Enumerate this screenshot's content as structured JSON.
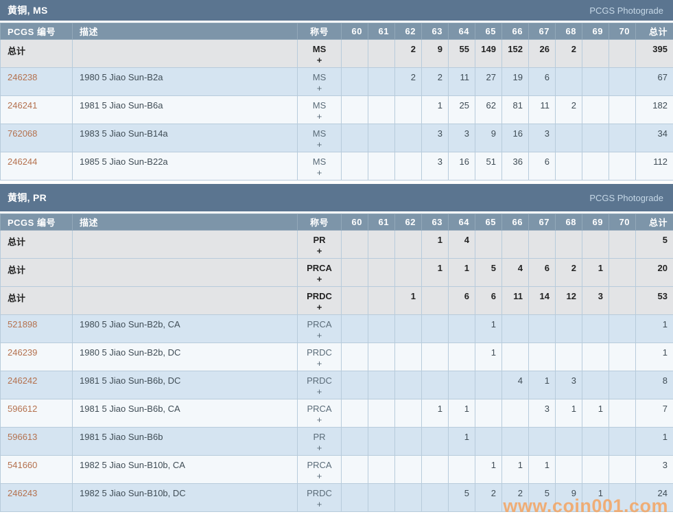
{
  "watermark": {
    "text": "www.coin001.com"
  },
  "colors": {
    "section_bar": "#5b7590",
    "header_row": "#7d95a9",
    "row_blue": "#d5e4f1",
    "row_white": "#f4f8fb",
    "row_total": "#e3e4e6",
    "link": "#b4714e",
    "watermark": "#f5a25c"
  },
  "sections": [
    {
      "title": "黄铜, MS",
      "photograde": "PCGS Photograde",
      "columns": {
        "pcgs": "PCGS 编号",
        "desc": "描述",
        "designation": "称号",
        "grades": [
          "60",
          "61",
          "62",
          "63",
          "64",
          "65",
          "66",
          "67",
          "68",
          "69",
          "70"
        ],
        "total": "总计"
      },
      "rows": [
        {
          "type": "total",
          "label": "总计",
          "desc": "",
          "designation": "MS",
          "plus": "+",
          "grades": [
            "",
            "",
            "2",
            "9",
            "55",
            "149",
            "152",
            "26",
            "2",
            "",
            ""
          ],
          "total": "395"
        },
        {
          "type": "data",
          "pcgs": "246238",
          "desc": "1980 5 Jiao Sun-B2a",
          "designation": "MS",
          "plus": "+",
          "grades": [
            "",
            "",
            "2",
            "2",
            "11",
            "27",
            "19",
            "6",
            "",
            "",
            ""
          ],
          "total": "67"
        },
        {
          "type": "data",
          "pcgs": "246241",
          "desc": "1981 5 Jiao Sun-B6a",
          "designation": "MS",
          "plus": "+",
          "grades": [
            "",
            "",
            "",
            "1",
            "25",
            "62",
            "81",
            "11",
            "2",
            "",
            ""
          ],
          "total": "182"
        },
        {
          "type": "data",
          "pcgs": "762068",
          "desc": "1983 5 Jiao Sun-B14a",
          "designation": "MS",
          "plus": "+",
          "grades": [
            "",
            "",
            "",
            "3",
            "3",
            "9",
            "16",
            "3",
            "",
            "",
            ""
          ],
          "total": "34"
        },
        {
          "type": "data",
          "pcgs": "246244",
          "desc": "1985 5 Jiao Sun-B22a",
          "designation": "MS",
          "plus": "+",
          "grades": [
            "",
            "",
            "",
            "3",
            "16",
            "51",
            "36",
            "6",
            "",
            "",
            ""
          ],
          "total": "112"
        }
      ]
    },
    {
      "title": "黄铜, PR",
      "photograde": "PCGS Photograde",
      "columns": {
        "pcgs": "PCGS 编号",
        "desc": "描述",
        "designation": "称号",
        "grades": [
          "60",
          "61",
          "62",
          "63",
          "64",
          "65",
          "66",
          "67",
          "68",
          "69",
          "70"
        ],
        "total": "总计"
      },
      "rows": [
        {
          "type": "total",
          "label": "总计",
          "desc": "",
          "designation": "PR",
          "plus": "+",
          "grades": [
            "",
            "",
            "",
            "1",
            "4",
            "",
            "",
            "",
            "",
            "",
            ""
          ],
          "total": "5"
        },
        {
          "type": "total",
          "label": "总计",
          "desc": "",
          "designation": "PRCA",
          "plus": "+",
          "grades": [
            "",
            "",
            "",
            "1",
            "1",
            "5",
            "4",
            "6",
            "2",
            "1",
            ""
          ],
          "total": "20"
        },
        {
          "type": "total",
          "label": "总计",
          "desc": "",
          "designation": "PRDC",
          "plus": "+",
          "grades": [
            "",
            "",
            "1",
            "",
            "6",
            "6",
            "11",
            "14",
            "12",
            "3",
            ""
          ],
          "total": "53"
        },
        {
          "type": "data",
          "pcgs": "521898",
          "desc": "1980 5 Jiao Sun-B2b, CA",
          "designation": "PRCA",
          "plus": "+",
          "grades": [
            "",
            "",
            "",
            "",
            "",
            "1",
            "",
            "",
            "",
            "",
            ""
          ],
          "total": "1"
        },
        {
          "type": "data",
          "pcgs": "246239",
          "desc": "1980 5 Jiao Sun-B2b, DC",
          "designation": "PRDC",
          "plus": "+",
          "grades": [
            "",
            "",
            "",
            "",
            "",
            "1",
            "",
            "",
            "",
            "",
            ""
          ],
          "total": "1"
        },
        {
          "type": "data",
          "pcgs": "246242",
          "desc": "1981 5 Jiao Sun-B6b, DC",
          "designation": "PRDC",
          "plus": "+",
          "grades": [
            "",
            "",
            "",
            "",
            "",
            "",
            "4",
            "1",
            "3",
            "",
            ""
          ],
          "total": "8"
        },
        {
          "type": "data",
          "pcgs": "596612",
          "desc": "1981 5 Jiao Sun-B6b, CA",
          "designation": "PRCA",
          "plus": "+",
          "grades": [
            "",
            "",
            "",
            "1",
            "1",
            "",
            "",
            "3",
            "1",
            "1",
            ""
          ],
          "total": "7"
        },
        {
          "type": "data",
          "pcgs": "596613",
          "desc": "1981 5 Jiao Sun-B6b",
          "designation": "PR",
          "plus": "+",
          "grades": [
            "",
            "",
            "",
            "",
            "1",
            "",
            "",
            "",
            "",
            "",
            ""
          ],
          "total": "1"
        },
        {
          "type": "data",
          "pcgs": "541660",
          "desc": "1982 5 Jiao Sun-B10b, CA",
          "designation": "PRCA",
          "plus": "+",
          "grades": [
            "",
            "",
            "",
            "",
            "",
            "1",
            "1",
            "1",
            "",
            "",
            ""
          ],
          "total": "3"
        },
        {
          "type": "data",
          "pcgs": "246243",
          "desc": "1982 5 Jiao Sun-B10b, DC",
          "designation": "PRDC",
          "plus": "+",
          "grades": [
            "",
            "",
            "",
            "",
            "5",
            "2",
            "2",
            "5",
            "9",
            "1",
            ""
          ],
          "total": "24"
        }
      ]
    }
  ]
}
